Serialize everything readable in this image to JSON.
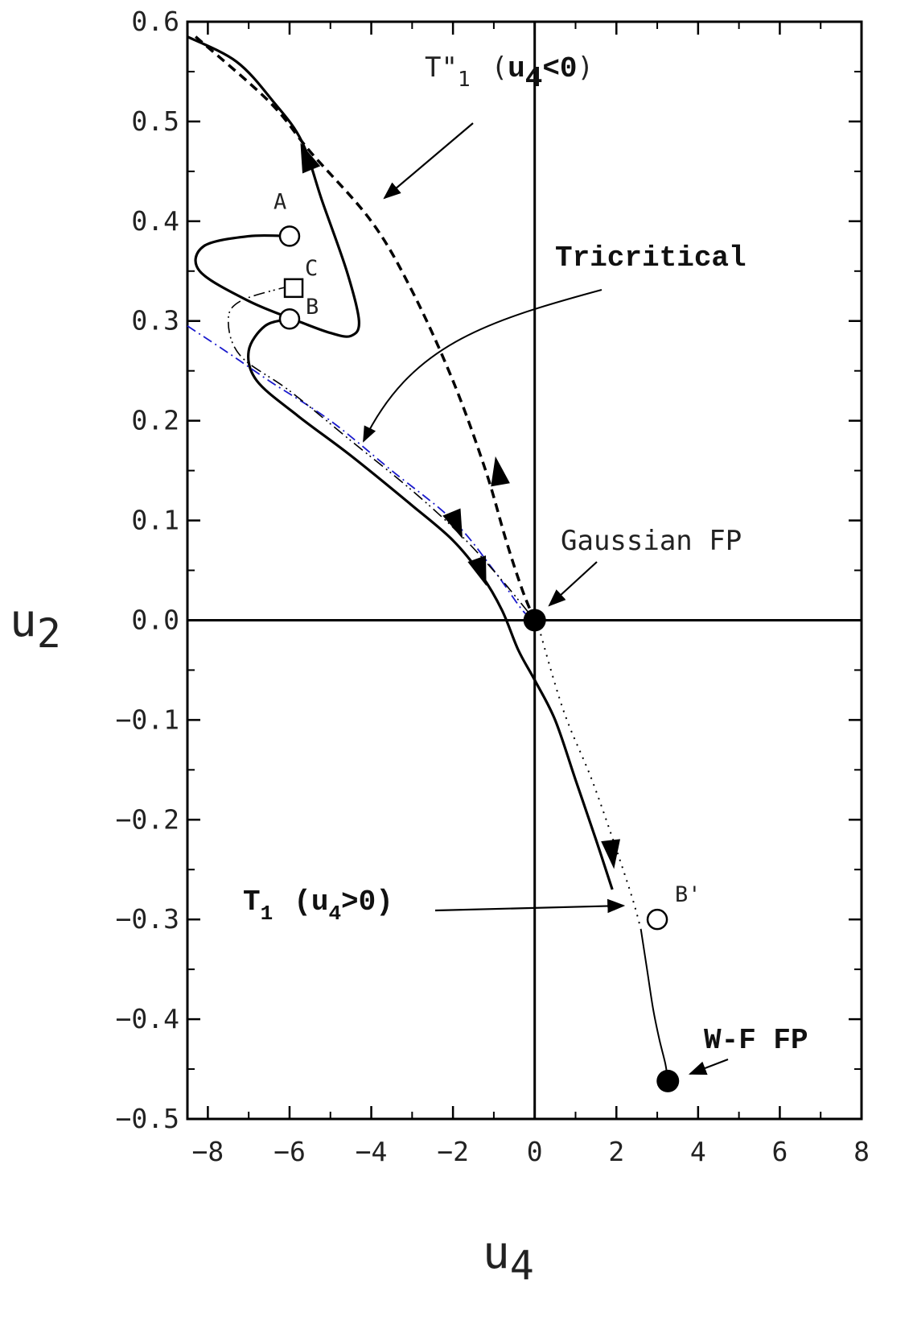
{
  "chart_data": {
    "type": "line",
    "title": "",
    "xlabel": "u",
    "xlabel_sub": "4",
    "ylabel": "u",
    "ylabel_sub": "2",
    "xlim": [
      -8.5,
      8
    ],
    "ylim": [
      -0.5,
      0.6
    ],
    "x_ticks": [
      -8,
      -6,
      -4,
      -2,
      0,
      2,
      4,
      6,
      8
    ],
    "x_tick_labels": [
      "−8",
      "−6",
      "−4",
      "−2",
      "0",
      "2",
      "4",
      "6",
      "8"
    ],
    "y_ticks": [
      0.6,
      0.5,
      0.4,
      0.3,
      0.2,
      0.1,
      0.0,
      -0.1,
      -0.2,
      -0.3,
      -0.4,
      -0.5
    ],
    "y_tick_labels": [
      "0.6",
      "0.5",
      "0.4",
      "0.3",
      "0.2",
      "0.1",
      "0.0",
      "−0.1",
      "−0.2",
      "−0.3",
      "−0.4",
      "−0.5"
    ],
    "grid": false,
    "zero_lines": true,
    "series": [
      {
        "style": "thick-solid",
        "color": "#000000",
        "points": [
          [
            -6,
            0.385
          ],
          [
            -7,
            0.385
          ],
          [
            -8.1,
            0.375
          ],
          [
            -8.2,
            0.35
          ],
          [
            -7,
            0.32
          ],
          [
            -5.8,
            0.3
          ],
          [
            -5,
            0.288
          ],
          [
            -4.5,
            0.285
          ],
          [
            -4.3,
            0.3
          ],
          [
            -4.6,
            0.35
          ],
          [
            -5.2,
            0.42
          ],
          [
            -5.7,
            0.48
          ],
          [
            -6.4,
            0.52
          ],
          [
            -7.3,
            0.56
          ],
          [
            -8.5,
            0.585
          ]
        ]
      },
      {
        "style": "thick-solid",
        "color": "#000000",
        "points": [
          [
            -6,
            0.302
          ],
          [
            -6.6,
            0.295
          ],
          [
            -7,
            0.27
          ],
          [
            -6.8,
            0.24
          ],
          [
            -5.8,
            0.205
          ],
          [
            -4.5,
            0.165
          ],
          [
            -3,
            0.115
          ],
          [
            -2,
            0.08
          ],
          [
            -1.3,
            0.045
          ],
          [
            -0.8,
            0.01
          ],
          [
            -0.4,
            -0.03
          ],
          [
            0,
            -0.06
          ],
          [
            0.5,
            -0.1
          ],
          [
            1,
            -0.16
          ],
          [
            1.5,
            -0.22
          ],
          [
            1.9,
            -0.27
          ]
        ]
      },
      {
        "style": "thin-solid",
        "color": "#000000",
        "points": [
          [
            2.6,
            -0.31
          ],
          [
            2.75,
            -0.35
          ],
          [
            2.9,
            -0.39
          ],
          [
            3.05,
            -0.42
          ],
          [
            3.2,
            -0.445
          ],
          [
            3.26,
            -0.462
          ]
        ]
      },
      {
        "style": "dotted",
        "color": "#000000",
        "points": [
          [
            0.05,
            0
          ],
          [
            0.7,
            -0.09
          ],
          [
            1.4,
            -0.16
          ],
          [
            2,
            -0.23
          ],
          [
            2.4,
            -0.28
          ],
          [
            2.6,
            -0.31
          ]
        ]
      },
      {
        "style": "dashed-thick",
        "color": "#000000",
        "points": [
          [
            -8.3,
            0.585
          ],
          [
            -6.5,
            0.52
          ],
          [
            -5.5,
            0.47
          ],
          [
            -4,
            0.4
          ],
          [
            -3,
            0.33
          ],
          [
            -2,
            0.24
          ],
          [
            -1.2,
            0.15
          ],
          [
            -0.7,
            0.08
          ],
          [
            -0.3,
            0.03
          ],
          [
            0,
            0
          ]
        ]
      },
      {
        "style": "dash-dot",
        "color": "#1a1acc",
        "points": [
          [
            -8.5,
            0.295
          ],
          [
            -7.5,
            0.268
          ],
          [
            -6.5,
            0.24
          ],
          [
            -5,
            0.2
          ],
          [
            -3.5,
            0.15
          ],
          [
            -2,
            0.1
          ],
          [
            -1,
            0.05
          ],
          [
            -0.3,
            0.01
          ],
          [
            0,
            0
          ]
        ]
      },
      {
        "style": "dash-dot-dot",
        "color": "#000000",
        "points": [
          [
            -6,
            0.335
          ],
          [
            -7.2,
            0.32
          ],
          [
            -7.5,
            0.3
          ],
          [
            -7.2,
            0.265
          ],
          [
            -6,
            0.23
          ],
          [
            -4.5,
            0.18
          ],
          [
            -3,
            0.13
          ],
          [
            -1.8,
            0.085
          ],
          [
            -0.8,
            0.04
          ],
          [
            0,
            0
          ]
        ]
      }
    ],
    "arrows": [
      {
        "at": [
          -5.6,
          0.465
        ],
        "dir": [
          -1.2,
          0.12
        ]
      },
      {
        "at": [
          -1.9,
          0.095
        ],
        "dir": [
          0.5,
          -0.05
        ]
      },
      {
        "at": [
          -1.3,
          0.048
        ],
        "dir": [
          0.6,
          -0.07
        ]
      },
      {
        "at": [
          -0.9,
          0.15
        ],
        "dir": [
          -0.3,
          0.07
        ]
      },
      {
        "at": [
          1.9,
          -0.235
        ],
        "dir": [
          0.2,
          -0.07
        ]
      }
    ],
    "points": [
      {
        "label": "A",
        "x": -6,
        "y": 0.385,
        "marker": "open-circle"
      },
      {
        "label": "B",
        "x": -6,
        "y": 0.302,
        "marker": "open-circle"
      },
      {
        "label": "C",
        "x": -5.9,
        "y": 0.333,
        "marker": "open-square"
      },
      {
        "label": "B'",
        "x": 3,
        "y": -0.3,
        "marker": "open-circle"
      },
      {
        "label": "",
        "x": 0,
        "y": 0,
        "marker": "filled-circle"
      },
      {
        "label": "",
        "x": 3.26,
        "y": -0.462,
        "marker": "filled-circle"
      }
    ],
    "annotations": [
      {
        "id": "t1pp",
        "text": "T\"",
        "sub": "1",
        "rest_open": "(",
        "rest_bold": "u",
        "rest_bold_sub": "4",
        "rest_bold2": "<0",
        "rest_close": ")"
      },
      {
        "id": "tricritical",
        "text": "Tricritical"
      },
      {
        "id": "gaussian",
        "text": "Gaussian FP"
      },
      {
        "id": "t1",
        "text": "T",
        "sub": "1",
        "rest": "(u",
        "rest_sub": "4",
        "rest2": ">0)"
      },
      {
        "id": "wf",
        "text": "W-F FP"
      }
    ]
  },
  "colors": {
    "axis": "#000000",
    "blue_curve": "#1a1acc"
  }
}
